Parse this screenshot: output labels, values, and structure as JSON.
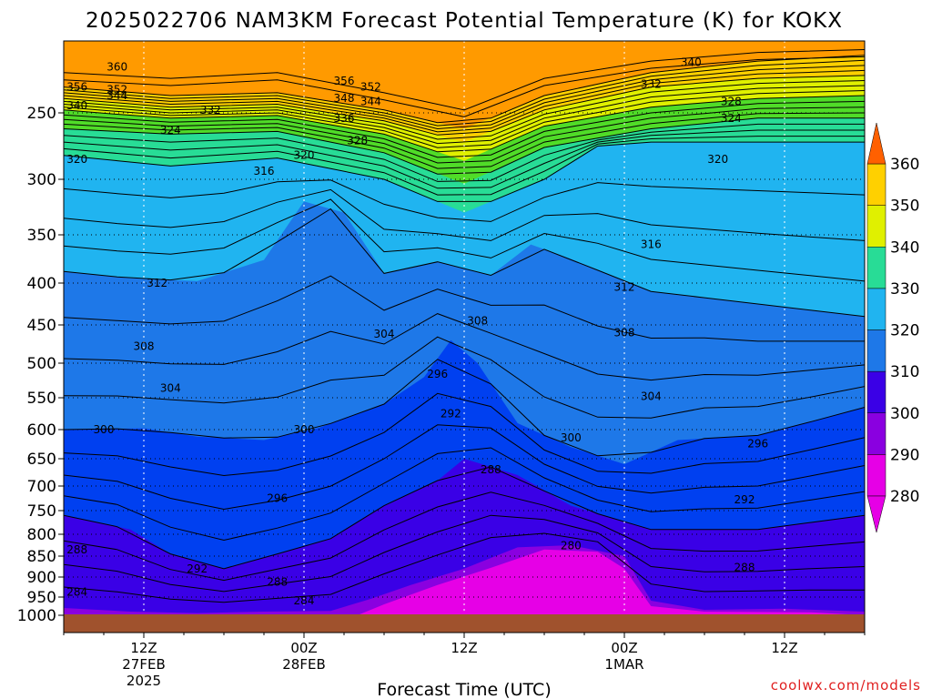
{
  "chart_data": {
    "type": "heatmap",
    "title": "2025022706 NAM3KM Forecast Potential Temperature (K) for KOKX",
    "xlabel": "Forecast Time (UTC)",
    "ylabel": "",
    "credit": "coolwx.com/models",
    "y_ticks": [
      "250",
      "300",
      "350",
      "400",
      "450",
      "500",
      "550",
      "600",
      "650",
      "700",
      "750",
      "800",
      "850",
      "900",
      "950",
      "1000"
    ],
    "y_tick_values": [
      250,
      300,
      350,
      400,
      450,
      500,
      550,
      600,
      650,
      700,
      750,
      800,
      850,
      900,
      950,
      1000
    ],
    "ylim": [
      1000,
      200
    ],
    "x_ticks": [
      {
        "hour": 6,
        "line1": "12Z",
        "line2": "27FEB",
        "line3": "2025"
      },
      {
        "hour": 18,
        "line1": "00Z",
        "line2": "28FEB",
        "line3": ""
      },
      {
        "hour": 30,
        "line1": "12Z",
        "line2": "",
        "line3": ""
      },
      {
        "hour": 42,
        "line1": "00Z",
        "line2": "1MAR",
        "line3": ""
      },
      {
        "hour": 54,
        "line1": "12Z",
        "line2": "",
        "line3": ""
      }
    ],
    "xlim": [
      0,
      60
    ],
    "colorbar": {
      "levels": [
        280,
        290,
        300,
        310,
        320,
        330,
        340,
        350,
        360
      ],
      "labels": [
        "280",
        "290",
        "300",
        "310",
        "320",
        "330",
        "340",
        "350",
        "360"
      ],
      "colors": [
        "#e600e6",
        "#8a00e0",
        "#3a00e6",
        "#0040f0",
        "#1e78e8",
        "#20b4f0",
        "#28dc96",
        "#50dc28",
        "#e0f000",
        "#ffd000",
        "#ff9a00",
        "#ff6000"
      ]
    },
    "contour_labels": [
      {
        "text": "360",
        "hour": 4,
        "p": 218
      },
      {
        "text": "356",
        "hour": 1,
        "p": 232
      },
      {
        "text": "352",
        "hour": 4,
        "p": 234
      },
      {
        "text": "344",
        "hour": 4,
        "p": 238
      },
      {
        "text": "340",
        "hour": 1,
        "p": 245
      },
      {
        "text": "332",
        "hour": 11,
        "p": 248
      },
      {
        "text": "324",
        "hour": 8,
        "p": 263
      },
      {
        "text": "320",
        "hour": 1,
        "p": 285
      },
      {
        "text": "316",
        "hour": 15,
        "p": 294
      },
      {
        "text": "320",
        "hour": 18,
        "p": 282
      },
      {
        "text": "356",
        "hour": 21,
        "p": 228
      },
      {
        "text": "352",
        "hour": 23,
        "p": 232
      },
      {
        "text": "348",
        "hour": 21,
        "p": 240
      },
      {
        "text": "344",
        "hour": 23,
        "p": 242
      },
      {
        "text": "336",
        "hour": 21,
        "p": 254
      },
      {
        "text": "328",
        "hour": 22,
        "p": 271
      },
      {
        "text": "340",
        "hour": 47,
        "p": 215
      },
      {
        "text": "332",
        "hour": 44,
        "p": 230
      },
      {
        "text": "328",
        "hour": 50,
        "p": 242
      },
      {
        "text": "324",
        "hour": 50,
        "p": 254
      },
      {
        "text": "320",
        "hour": 49,
        "p": 285
      },
      {
        "text": "316",
        "hour": 44,
        "p": 360
      },
      {
        "text": "312",
        "hour": 7,
        "p": 400
      },
      {
        "text": "312",
        "hour": 42,
        "p": 405
      },
      {
        "text": "308",
        "hour": 31,
        "p": 445
      },
      {
        "text": "308",
        "hour": 42,
        "p": 460
      },
      {
        "text": "304",
        "hour": 24,
        "p": 462
      },
      {
        "text": "308",
        "hour": 6,
        "p": 478
      },
      {
        "text": "304",
        "hour": 8,
        "p": 536
      },
      {
        "text": "296",
        "hour": 28,
        "p": 516
      },
      {
        "text": "304",
        "hour": 44,
        "p": 548
      },
      {
        "text": "292",
        "hour": 29,
        "p": 575
      },
      {
        "text": "300",
        "hour": 3,
        "p": 600
      },
      {
        "text": "300",
        "hour": 18,
        "p": 600
      },
      {
        "text": "300",
        "hour": 38,
        "p": 614
      },
      {
        "text": "296",
        "hour": 52,
        "p": 624
      },
      {
        "text": "288",
        "hour": 32,
        "p": 670
      },
      {
        "text": "296",
        "hour": 16,
        "p": 725
      },
      {
        "text": "292",
        "hour": 51,
        "p": 728
      },
      {
        "text": "280",
        "hour": 38,
        "p": 826
      },
      {
        "text": "288",
        "hour": 1,
        "p": 835
      },
      {
        "text": "292",
        "hour": 10,
        "p": 880
      },
      {
        "text": "288",
        "hour": 51,
        "p": 877
      },
      {
        "text": "288",
        "hour": 16,
        "p": 913
      },
      {
        "text": "284",
        "hour": 1,
        "p": 938
      },
      {
        "text": "284",
        "hour": 18,
        "p": 960
      }
    ]
  }
}
